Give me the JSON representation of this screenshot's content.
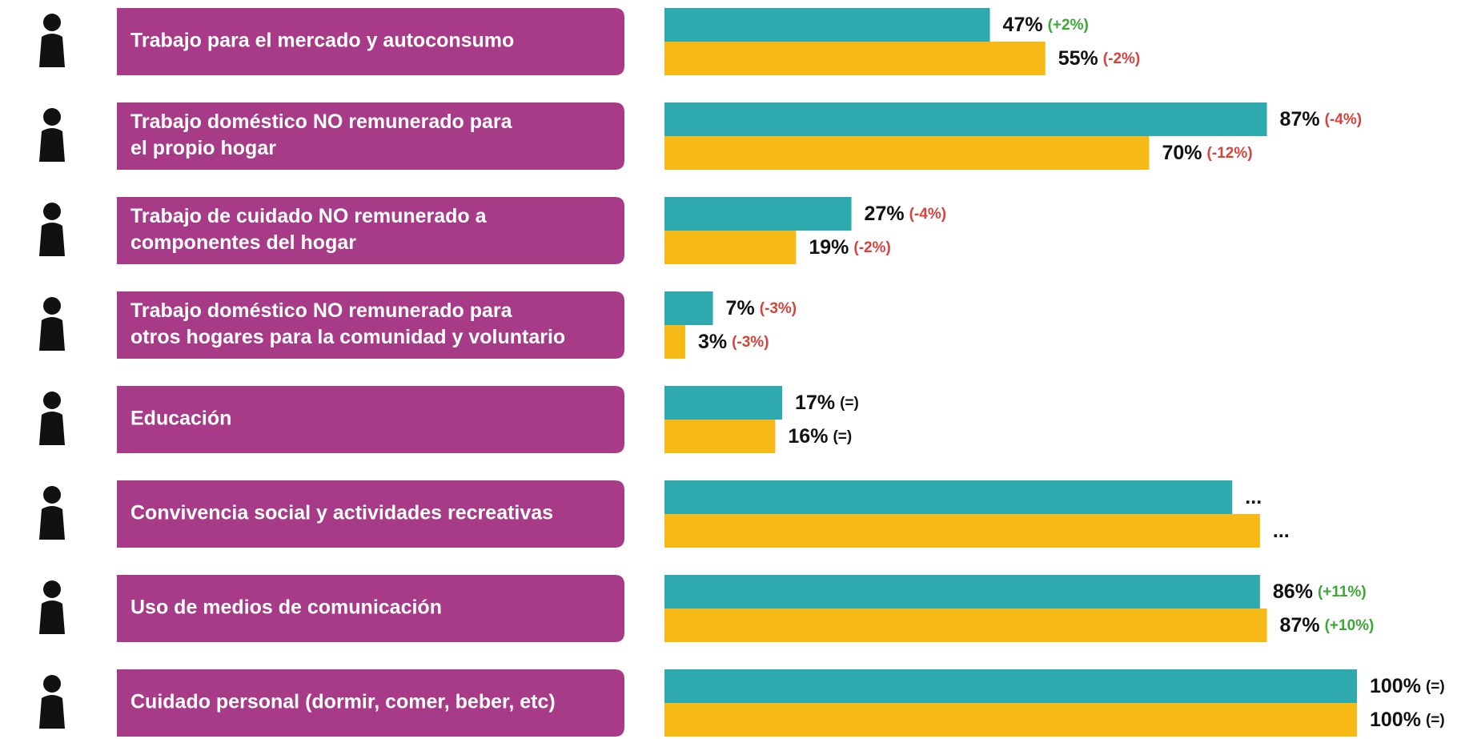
{
  "chart_data": {
    "type": "hbar",
    "categories": [
      [
        "Trabajo para el mercado y autoconsumo"
      ],
      [
        "Trabajo doméstico NO remunerado para",
        "el propio hogar"
      ],
      [
        "Trabajo de cuidado NO remunerado a",
        "componentes del hogar"
      ],
      [
        "Trabajo doméstico NO remunerado para",
        "otros hogares para la comunidad y voluntario"
      ],
      [
        "Educación"
      ],
      [
        "Convivencia social y actividades recreativas"
      ],
      [
        "Uso de medios de comunicación"
      ],
      [
        "Cuidado personal (dormir, comer, beber, etc)"
      ]
    ],
    "category_color": "#a83b87",
    "xlim": [
      0,
      100
    ],
    "series": [
      {
        "color": "#2eaaaf",
        "values": [
          47,
          87,
          27,
          7,
          17,
          82,
          86,
          100
        ],
        "value_labels": [
          "47%",
          "87%",
          "27%",
          "7%",
          "17%",
          "...",
          "86%",
          "100%"
        ],
        "changes": [
          "(+2%)",
          "(-4%)",
          "(-4%)",
          "(-3%)",
          "(=)",
          null,
          "(+11%)",
          "(=)"
        ]
      },
      {
        "color": "#f7b916",
        "values": [
          55,
          70,
          19,
          3,
          16,
          86,
          87,
          100
        ],
        "value_labels": [
          "55%",
          "70%",
          "19%",
          "3%",
          "16%",
          "...",
          "87%",
          "100%"
        ],
        "changes": [
          "(-2%)",
          "(-12%)",
          "(-2%)",
          "(-3%)",
          "(=)",
          null,
          "(+10%)",
          "(=)"
        ]
      }
    ],
    "change_colors": {
      "up": "#3aa835",
      "down": "#d9413a",
      "same": "#111111"
    }
  }
}
